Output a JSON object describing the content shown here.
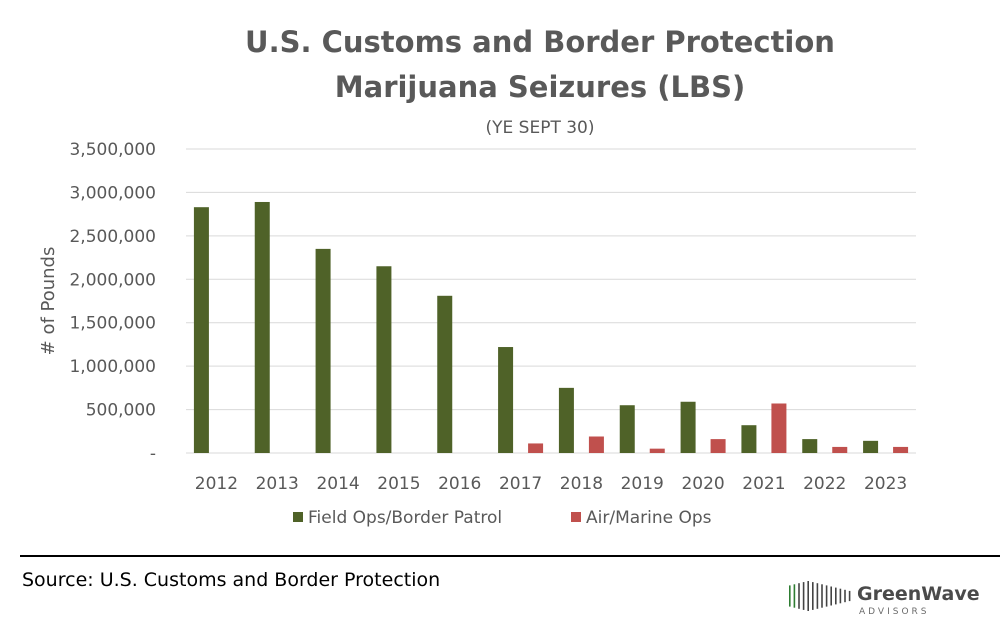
{
  "chart_data": {
    "type": "bar",
    "title_lines": [
      "U.S. Customs and Border Protection",
      "Marijuana Seizures (LBS)"
    ],
    "subtitle": "(YE SEPT 30)",
    "xlabel": "",
    "ylabel": "# of Pounds",
    "ylim": [
      0,
      3500000
    ],
    "yticks": [
      0,
      500000,
      1000000,
      1500000,
      2000000,
      2500000,
      3000000,
      3500000
    ],
    "ytick_labels": [
      "-",
      "500,000",
      "1,000,000",
      "1,500,000",
      "2,000,000",
      "2,500,000",
      "3,000,000",
      "3,500,000"
    ],
    "grid": true,
    "legend_position": "bottom",
    "categories": [
      "2012",
      "2013",
      "2014",
      "2015",
      "2016",
      "2017",
      "2018",
      "2019",
      "2020",
      "2021",
      "2022",
      "2023"
    ],
    "series": [
      {
        "name": "Field Ops/Border Patrol",
        "color": "#4f6228",
        "values": [
          2830000,
          2890000,
          2350000,
          2150000,
          1810000,
          1220000,
          750000,
          550000,
          590000,
          320000,
          160000,
          140000
        ]
      },
      {
        "name": "Air/Marine Ops",
        "color": "#c0504d",
        "values": [
          0,
          0,
          0,
          0,
          0,
          110000,
          190000,
          50000,
          160000,
          570000,
          70000,
          70000
        ]
      }
    ]
  },
  "footer": {
    "source": "Source: U.S. Customs and Border Protection",
    "logo_text": "GreenWave",
    "logo_subtext": "ADVISORS"
  }
}
